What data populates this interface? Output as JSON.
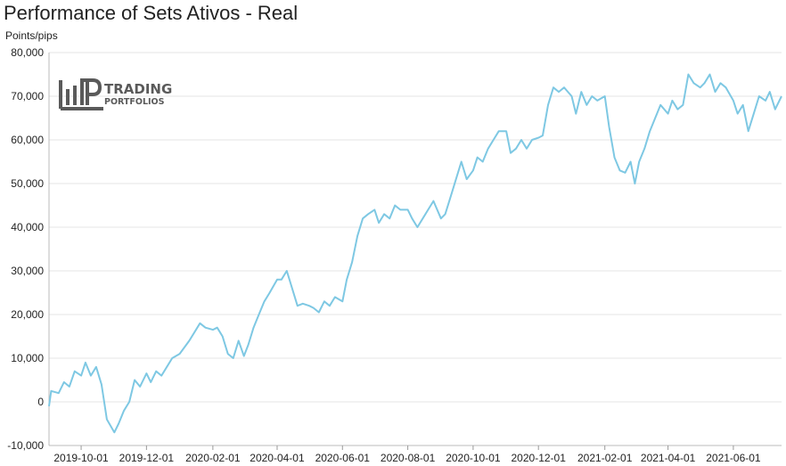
{
  "chart_data": {
    "type": "line",
    "title": "Performance of Sets Ativos - Real",
    "ylabel": "Points/pips",
    "xlabel": "",
    "ylim": [
      -10000,
      80000
    ],
    "yticks": [
      -10000,
      0,
      10000,
      20000,
      30000,
      40000,
      50000,
      60000,
      70000,
      80000
    ],
    "ytick_labels": [
      "-10,000",
      "0",
      "10,000",
      "20,000",
      "30,000",
      "40,000",
      "50,000",
      "60,000",
      "70,000",
      "80,000"
    ],
    "xlim": [
      "2019-09-01",
      "2021-07-16"
    ],
    "xticks": [
      "2019-10-01",
      "2019-12-01",
      "2020-02-01",
      "2020-04-01",
      "2020-06-01",
      "2020-08-01",
      "2020-10-01",
      "2020-12-01",
      "2021-02-01",
      "2021-04-01",
      "2021-06-01"
    ],
    "grid": "horizontal",
    "legend": "none",
    "color": "#7ec8e3",
    "series": [
      {
        "x": [
          "2019-09-01",
          "2019-09-03",
          "2019-09-10",
          "2019-09-15",
          "2019-09-20",
          "2019-09-25",
          "2019-10-01",
          "2019-10-05",
          "2019-10-10",
          "2019-10-15",
          "2019-10-20",
          "2019-10-25",
          "2019-11-01",
          "2019-11-05",
          "2019-11-10",
          "2019-11-15",
          "2019-11-20",
          "2019-11-25",
          "2019-12-01",
          "2019-12-05",
          "2019-12-10",
          "2019-12-15",
          "2019-12-20",
          "2019-12-25",
          "2020-01-01",
          "2020-01-10",
          "2020-01-20",
          "2020-01-25",
          "2020-02-01",
          "2020-02-05",
          "2020-02-10",
          "2020-02-15",
          "2020-02-20",
          "2020-02-25",
          "2020-03-01",
          "2020-03-05",
          "2020-03-10",
          "2020-03-15",
          "2020-03-20",
          "2020-03-25",
          "2020-04-01",
          "2020-04-05",
          "2020-04-10",
          "2020-04-15",
          "2020-04-20",
          "2020-04-25",
          "2020-05-01",
          "2020-05-05",
          "2020-05-10",
          "2020-05-15",
          "2020-05-20",
          "2020-05-25",
          "2020-06-01",
          "2020-06-05",
          "2020-06-10",
          "2020-06-15",
          "2020-06-20",
          "2020-06-25",
          "2020-07-01",
          "2020-07-05",
          "2020-07-10",
          "2020-07-15",
          "2020-07-20",
          "2020-07-25",
          "2020-08-01",
          "2020-08-05",
          "2020-08-10",
          "2020-08-15",
          "2020-08-20",
          "2020-08-25",
          "2020-09-01",
          "2020-09-05",
          "2020-09-10",
          "2020-09-15",
          "2020-09-20",
          "2020-09-25",
          "2020-10-01",
          "2020-10-05",
          "2020-10-10",
          "2020-10-15",
          "2020-10-20",
          "2020-10-25",
          "2020-11-01",
          "2020-11-05",
          "2020-11-10",
          "2020-11-15",
          "2020-11-20",
          "2020-11-25",
          "2020-12-01",
          "2020-12-05",
          "2020-12-10",
          "2020-12-15",
          "2020-12-20",
          "2020-12-25",
          "2021-01-01",
          "2021-01-05",
          "2021-01-10",
          "2021-01-15",
          "2021-01-20",
          "2021-01-25",
          "2021-02-01",
          "2021-02-05",
          "2021-02-10",
          "2021-02-15",
          "2021-02-20",
          "2021-02-25",
          "2021-03-01",
          "2021-03-05",
          "2021-03-10",
          "2021-03-15",
          "2021-03-20",
          "2021-03-25",
          "2021-04-01",
          "2021-04-05",
          "2021-04-10",
          "2021-04-15",
          "2021-04-20",
          "2021-04-25",
          "2021-05-01",
          "2021-05-05",
          "2021-05-10",
          "2021-05-15",
          "2021-05-20",
          "2021-05-25",
          "2021-06-01",
          "2021-06-05",
          "2021-06-10",
          "2021-06-15",
          "2021-06-20",
          "2021-06-25",
          "2021-07-01",
          "2021-07-05",
          "2021-07-10",
          "2021-07-16"
        ],
        "y": [
          -1000,
          2500,
          2000,
          4500,
          3500,
          7000,
          6000,
          9000,
          6000,
          8000,
          4000,
          -4000,
          -7000,
          -5000,
          -2000,
          0,
          5000,
          3500,
          6500,
          4500,
          7000,
          6000,
          8000,
          10000,
          11000,
          14000,
          18000,
          17000,
          16500,
          17000,
          15000,
          11000,
          10000,
          14000,
          10500,
          13000,
          17000,
          20000,
          23000,
          25000,
          28000,
          28000,
          30000,
          26000,
          22000,
          22500,
          22000,
          21500,
          20500,
          23000,
          22000,
          24000,
          23000,
          28000,
          32000,
          38000,
          42000,
          43000,
          44000,
          41000,
          43000,
          42000,
          45000,
          44000,
          44000,
          42000,
          40000,
          42000,
          44000,
          46000,
          42000,
          43000,
          47000,
          51000,
          55000,
          51000,
          53000,
          56000,
          55000,
          58000,
          60000,
          62000,
          62000,
          57000,
          58000,
          60000,
          58000,
          60000,
          60500,
          61000,
          68000,
          72000,
          71000,
          72000,
          70000,
          66000,
          71000,
          68000,
          70000,
          69000,
          70000,
          63000,
          56000,
          53000,
          52500,
          55000,
          50000,
          55000,
          58000,
          62000,
          65000,
          68000,
          66000,
          69000,
          67000,
          68000,
          75000,
          73000,
          72000,
          73000,
          75000,
          71000,
          73000,
          72000,
          69000,
          66000,
          68000,
          62000,
          66000,
          70000,
          69000,
          71000,
          67000,
          70000
        ]
      }
    ]
  },
  "logo": {
    "line1": "TRADING",
    "line2": "PORTFOLIOS"
  }
}
